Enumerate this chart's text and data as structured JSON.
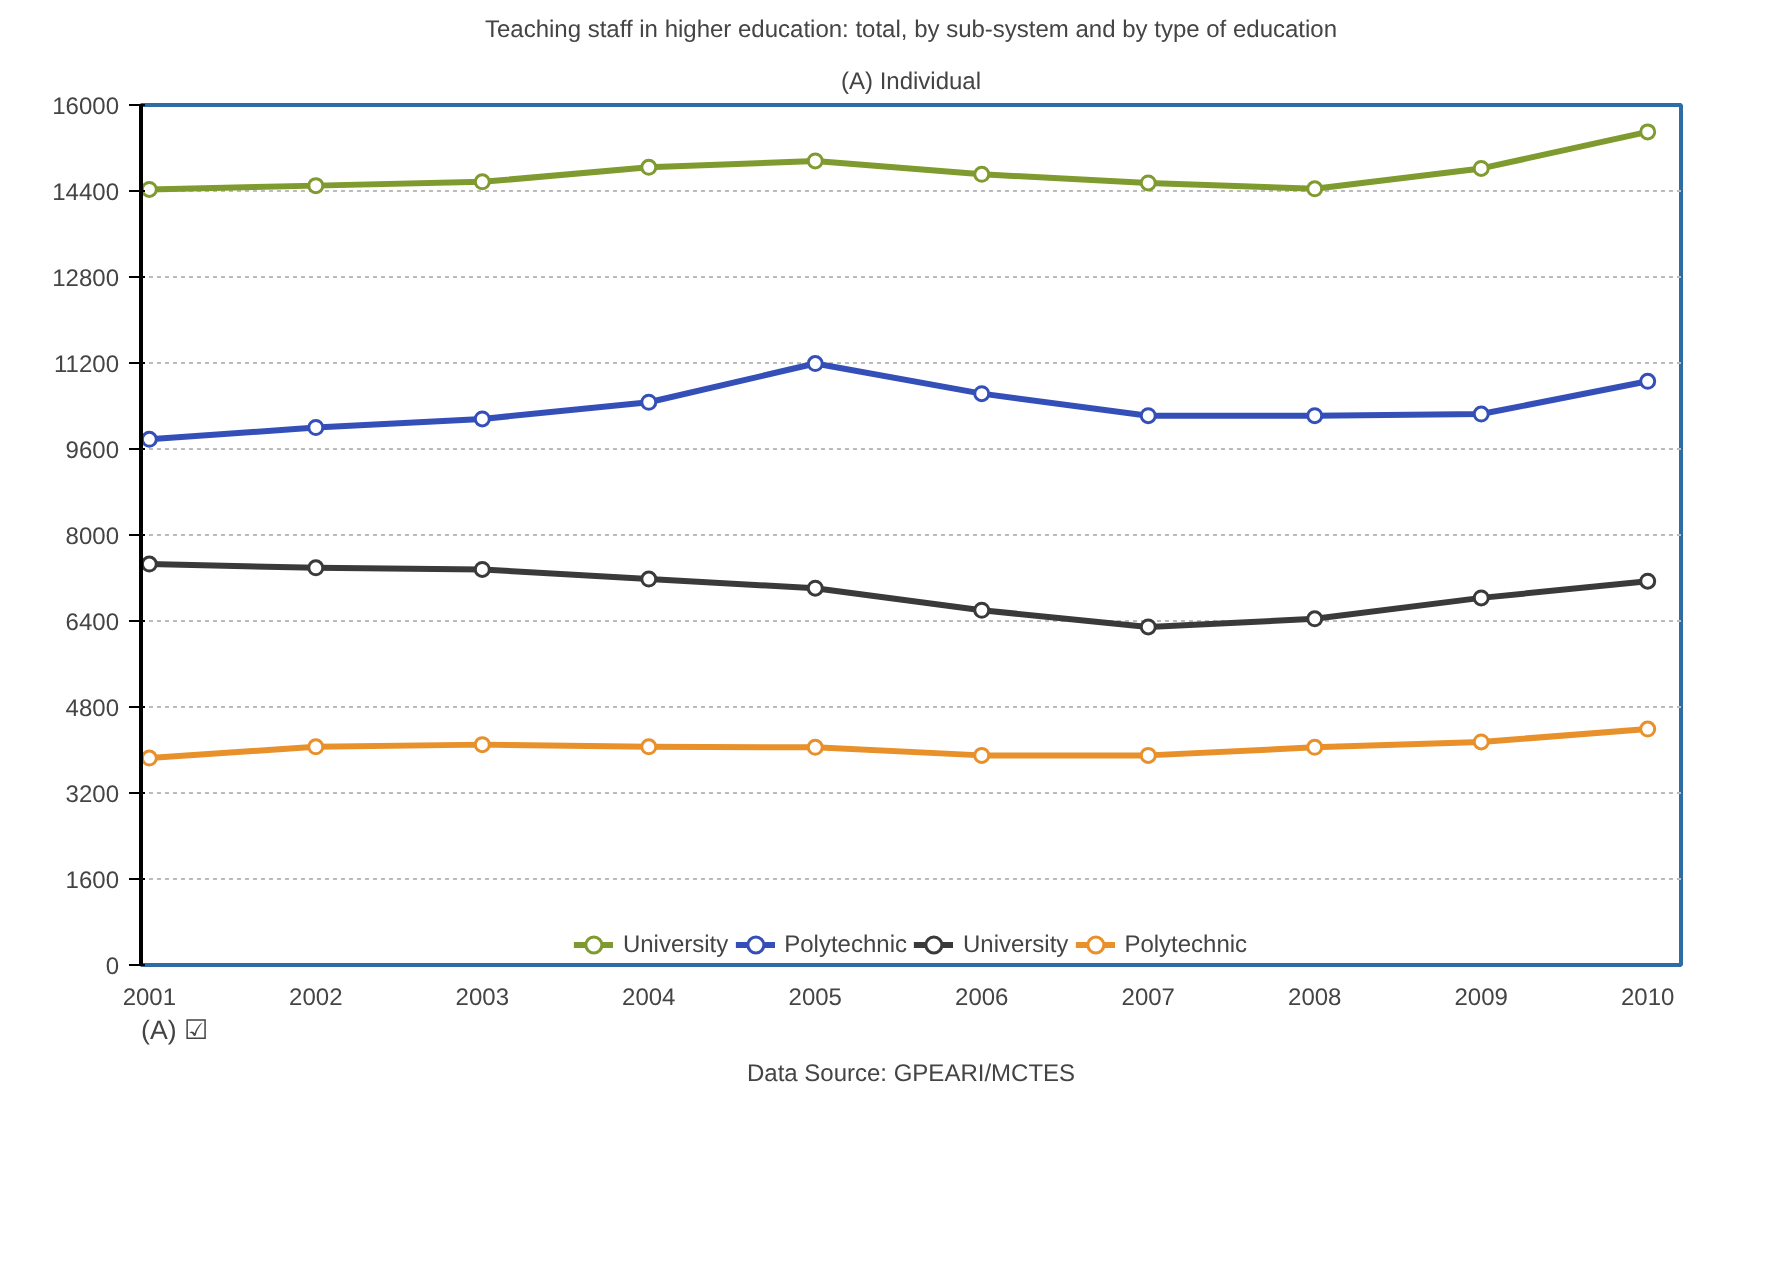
{
  "chart_data": {
    "type": "line",
    "title": "Teaching staff in higher education: total, by sub-system and by type of education",
    "subtitle": "(A) Individual",
    "x": [
      2001,
      2002,
      2003,
      2004,
      2005,
      2006,
      2007,
      2008,
      2009,
      2010
    ],
    "series": [
      {
        "name": "University",
        "color": "#7f9a2e",
        "values": [
          14430,
          14500,
          14570,
          14840,
          14960,
          14710,
          14550,
          14440,
          14820,
          15500
        ]
      },
      {
        "name": "Polytechnic",
        "color": "#3450b8",
        "values": [
          9780,
          10000,
          10160,
          10470,
          11190,
          10630,
          10220,
          10220,
          10250,
          10860
        ]
      },
      {
        "name": "University",
        "color": "#3a3a3a",
        "values": [
          7460,
          7390,
          7360,
          7180,
          7010,
          6600,
          6290,
          6440,
          6830,
          7140
        ]
      },
      {
        "name": "Polytechnic",
        "color": "#e8902a",
        "values": [
          3850,
          4060,
          4100,
          4060,
          4050,
          3900,
          3900,
          4050,
          4150,
          4390
        ]
      }
    ],
    "xlim": [
      2000.95,
      2010.2
    ],
    "xticks": [
      2001,
      2002,
      2003,
      2004,
      2005,
      2006,
      2007,
      2008,
      2009,
      2010
    ],
    "ylim": [
      0,
      16000
    ],
    "yticks": [
      0,
      1600,
      3200,
      4800,
      6400,
      8000,
      9600,
      11200,
      12800,
      14400,
      16000
    ],
    "grid": "y",
    "legend": "bottom",
    "marker": "circle",
    "line_style": "solid",
    "annotations": [
      "(A) ☑",
      "Data Source: GPEARI/MCTES"
    ]
  }
}
